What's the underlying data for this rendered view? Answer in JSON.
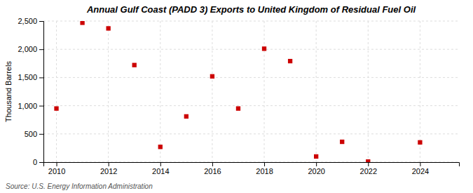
{
  "chart_data": {
    "type": "scatter",
    "title": "Annual Gulf Coast (PADD 3) Exports to United Kingdom of Residual Fuel Oil",
    "ylabel": "Thousand Barrels",
    "annotation": "Source: U.S. Energy Information Administration",
    "x": [
      2010,
      2011,
      2012,
      2013,
      2014,
      2015,
      2016,
      2017,
      2018,
      2019,
      2020,
      2021,
      2022,
      2024
    ],
    "values": [
      950,
      2470,
      2370,
      1720,
      270,
      810,
      1520,
      950,
      2010,
      1790,
      100,
      360,
      10,
      350
    ],
    "color": "#cc0000",
    "marker": "square",
    "xlim": [
      2009.5,
      2025.5
    ],
    "ylim": [
      0,
      2500
    ],
    "xticks": [
      2010,
      2012,
      2014,
      2016,
      2018,
      2020,
      2022,
      2024
    ],
    "yticks": [
      0,
      500,
      {
        "value": 1000,
        "label": "1,000"
      },
      {
        "value": 1500,
        "label": "1,500"
      },
      {
        "value": 2000,
        "label": "2,000"
      },
      {
        "value": 2500,
        "label": "2,500"
      }
    ],
    "grid": true
  }
}
